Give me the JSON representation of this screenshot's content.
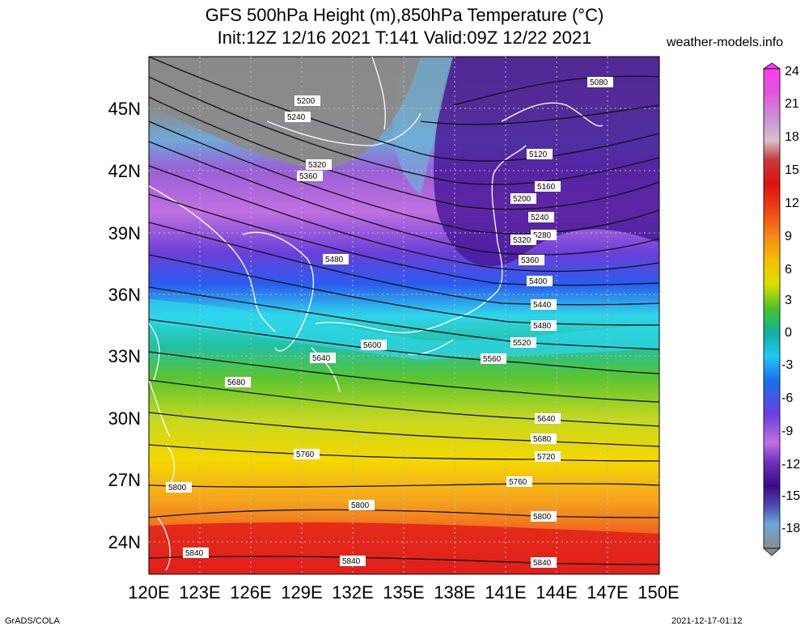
{
  "header": {
    "title_line1": "GFS 500hPa Height (m),850hPa Temperature (°C)",
    "title_line2": "Init:12Z 12/16 2021 T:141 Valid:09Z 12/22 2021",
    "site": "weather-models.info"
  },
  "axes": {
    "lat_labels": [
      "45N",
      "42N",
      "39N",
      "36N",
      "33N",
      "30N",
      "27N",
      "24N"
    ],
    "lon_labels": [
      "120E",
      "123E",
      "126E",
      "129E",
      "132E",
      "135E",
      "138E",
      "141E",
      "144E",
      "147E",
      "150E"
    ]
  },
  "colorbar": {
    "ticks": [
      "24",
      "21",
      "18",
      "15",
      "12",
      "9",
      "6",
      "3",
      "0",
      "-3",
      "-6",
      "-9",
      "-12",
      "-15",
      "-18"
    ],
    "units": "°C"
  },
  "contours": {
    "labels": [
      "5080",
      "5120",
      "5160",
      "5200",
      "5240",
      "5280",
      "5320",
      "5360",
      "5400",
      "5440",
      "5480",
      "5520",
      "5560",
      "5600",
      "5640",
      "5680",
      "5720",
      "5760",
      "5800",
      "5840"
    ]
  },
  "footer": {
    "left": "GrADS/COLA",
    "right": "2021-12-17-01:12"
  },
  "colors": {
    "warm_red": "#e8261a",
    "orange": "#f07a1e",
    "yellow": "#f5d800",
    "green": "#3bbb2c",
    "cyan": "#2ed6ea",
    "blue": "#2a5cf0",
    "purple": "#8d42d8",
    "dark_purple": "#4a1a9a",
    "grey": "#8a8a8a"
  }
}
